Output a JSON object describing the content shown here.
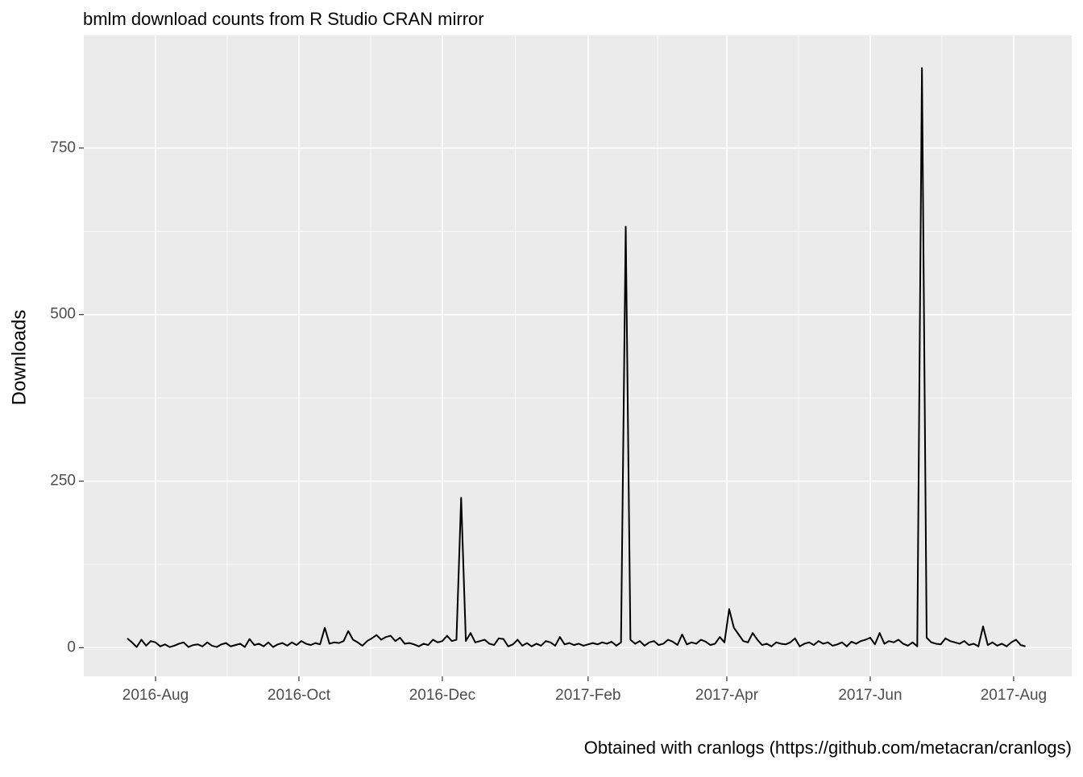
{
  "chart_data": {
    "type": "line",
    "title": "bmlm download counts from R Studio CRAN mirror",
    "y_label": "Downloads",
    "caption": "Obtained with cranlogs (https://github.com/metacran/cranlogs)",
    "x": [
      -12,
      -10,
      -8,
      -6,
      -4,
      -2,
      0,
      2,
      4,
      6,
      8,
      10,
      12,
      14,
      16,
      18,
      20,
      22,
      24,
      26,
      28,
      30,
      32,
      34,
      36,
      38,
      40,
      42,
      44,
      46,
      48,
      50,
      52,
      54,
      56,
      58,
      60,
      62,
      64,
      66,
      68,
      70,
      72,
      74,
      76,
      78,
      80,
      82,
      84,
      86,
      88,
      90,
      92,
      94,
      96,
      98,
      100,
      102,
      104,
      106,
      108,
      110,
      112,
      114,
      116,
      118,
      120,
      122,
      124,
      126,
      128,
      130,
      132,
      134,
      136,
      138,
      140,
      142,
      144,
      146,
      148,
      150,
      152,
      154,
      156,
      158,
      160,
      162,
      164,
      166,
      168,
      170,
      172,
      174,
      176,
      178,
      180,
      182,
      184,
      186,
      188,
      190,
      192,
      194,
      196,
      198,
      200,
      202,
      204,
      206,
      208,
      210,
      212,
      214,
      216,
      218,
      220,
      222,
      224,
      226,
      228,
      230,
      232,
      234,
      236,
      238,
      240,
      242,
      244,
      246,
      248,
      250,
      252,
      254,
      256,
      258,
      260,
      262,
      264,
      266,
      268,
      270,
      272,
      274,
      276,
      278,
      280,
      282,
      284,
      286,
      288,
      290,
      292,
      294,
      296,
      298,
      300,
      302,
      304,
      306,
      308,
      310,
      312,
      314,
      316,
      318,
      320,
      322,
      324,
      326,
      328,
      330,
      332,
      334,
      336,
      338,
      340,
      342,
      344,
      346,
      348,
      350,
      352,
      354,
      356,
      358,
      360,
      362,
      364,
      366,
      368,
      370
    ],
    "series": [
      {
        "color": "#000000",
        "values": [
          14,
          8,
          1,
          12,
          3,
          10,
          8,
          2,
          5,
          1,
          3,
          6,
          8,
          1,
          4,
          5,
          2,
          8,
          3,
          1,
          5,
          7,
          2,
          4,
          6,
          1,
          13,
          4,
          6,
          2,
          8,
          1,
          5,
          7,
          3,
          8,
          4,
          10,
          6,
          4,
          7,
          5,
          30,
          6,
          8,
          7,
          10,
          25,
          12,
          8,
          3,
          10,
          14,
          19,
          12,
          16,
          18,
          10,
          15,
          6,
          7,
          5,
          2,
          6,
          4,
          12,
          8,
          10,
          18,
          10,
          12,
          225,
          10,
          22,
          8,
          10,
          12,
          6,
          4,
          14,
          13,
          2,
          5,
          12,
          3,
          7,
          2,
          6,
          3,
          10,
          8,
          3,
          16,
          5,
          7,
          4,
          6,
          3,
          5,
          7,
          5,
          8,
          6,
          9,
          3,
          8,
          632,
          12,
          6,
          10,
          3,
          8,
          10,
          4,
          6,
          12,
          9,
          4,
          20,
          5,
          8,
          6,
          12,
          9,
          4,
          6,
          16,
          8,
          58,
          30,
          20,
          10,
          8,
          22,
          12,
          4,
          6,
          2,
          8,
          6,
          5,
          8,
          14,
          2,
          6,
          8,
          4,
          10,
          6,
          8,
          3,
          5,
          8,
          2,
          9,
          6,
          10,
          12,
          15,
          5,
          22,
          6,
          10,
          8,
          12,
          6,
          3,
          8,
          2,
          870,
          15,
          8,
          6,
          5,
          14,
          10,
          8,
          6,
          10,
          4,
          6,
          2,
          32,
          4,
          8,
          3,
          6,
          2,
          8,
          12,
          4,
          2
        ]
      }
    ],
    "xlim": [
      -30.5,
      389.7
    ],
    "xticks": [
      {
        "value": 0,
        "label": "2016-Aug"
      },
      {
        "value": 61,
        "label": "2016-Oct"
      },
      {
        "value": 122,
        "label": "2016-Dec"
      },
      {
        "value": 184,
        "label": "2017-Feb"
      },
      {
        "value": 243,
        "label": "2017-Apr"
      },
      {
        "value": 304,
        "label": "2017-Jun"
      },
      {
        "value": 365,
        "label": "2017-Aug"
      }
    ],
    "ylim": [
      -43,
      919
    ],
    "yticks": [
      0,
      250,
      500,
      750
    ],
    "grid": true
  }
}
